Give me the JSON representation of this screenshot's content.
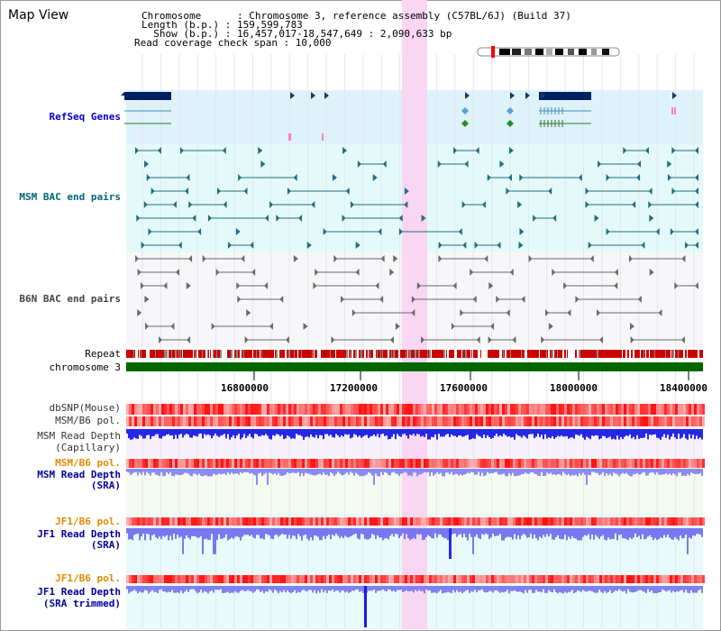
{
  "page": {
    "title": "Map View"
  },
  "header": {
    "chromosome_line": "Chromosome      : Chromosome 3, reference assembly (C57BL/6J) (Build 37)",
    "length_line": "Length (b.p.) : 159,599,783",
    "show_line": "  Show (b.p.) : 16,457,017-18,547,649 : 2,090,633 bp",
    "coverage_line": "Read coverage check span : 10,000"
  },
  "tracks": {
    "refseq": "RefSeq Genes",
    "msm_bac": "MSM BAC end pairs",
    "b6n_bac": "B6N BAC end pairs",
    "repeat": "Repeat",
    "chromosome": "chromosome 3",
    "dbsnp": "dbSNP(Mouse)",
    "msm_b6_pol_1": "MSM/B6 pol.",
    "msm_read_depth_cap_1": "MSM Read Depth",
    "msm_read_depth_cap_2": "(Capillary)",
    "msm_b6_pol_2": "MSM/B6 pol.",
    "msm_read_depth_sra_1": "MSM Read Depth",
    "msm_read_depth_sra_2": "(SRA)",
    "jf1_b6_pol_1": "JF1/B6 pol.",
    "jf1_read_depth_sra_1": "JF1 Read Depth",
    "jf1_read_depth_sra_2": "(SRA)",
    "jf1_b6_pol_2": "JF1/B6 pol.",
    "jf1_read_depth_trim_1": "JF1 Read Depth",
    "jf1_read_depth_trim_2": "(SRA trimmed)"
  },
  "axis": {
    "ticks": [
      "16800000",
      "17200000",
      "17600000",
      "18000000",
      "18400000"
    ]
  },
  "colors": {
    "refseq_label": "#0000cc",
    "msm_bac_label": "#006677",
    "orange_label": "#e38a00",
    "blue_label": "#000099",
    "highlight": "#f9d6f2",
    "chromosome_bar": "#006600"
  }
}
